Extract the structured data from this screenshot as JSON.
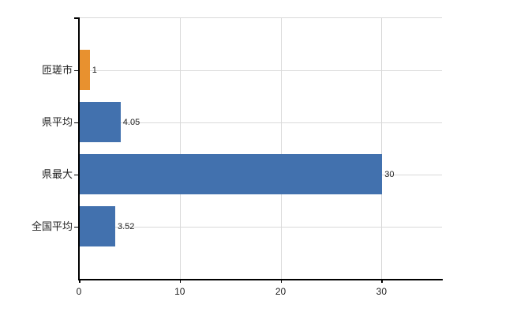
{
  "chart_data": {
    "type": "bar",
    "orientation": "horizontal",
    "title": "",
    "xlabel": "",
    "ylabel": "",
    "categories": [
      "匝瑳市",
      "県平均",
      "県最大",
      "全国平均"
    ],
    "values": [
      1,
      4.05,
      30,
      3.52
    ],
    "value_labels": [
      "1",
      "4.05",
      "30",
      "3.52"
    ],
    "bar_colors": [
      "#e8912f",
      "#4271ae",
      "#4271ae",
      "#4271ae"
    ],
    "xticks": [
      0,
      10,
      20,
      30
    ],
    "xlim": [
      0,
      36
    ],
    "grid": true,
    "legend": "none",
    "colors": {
      "highlight": "#e8912f",
      "default": "#4271ae",
      "grid": "#d9d9d9",
      "axis": "#000000",
      "text": "#222222"
    }
  }
}
